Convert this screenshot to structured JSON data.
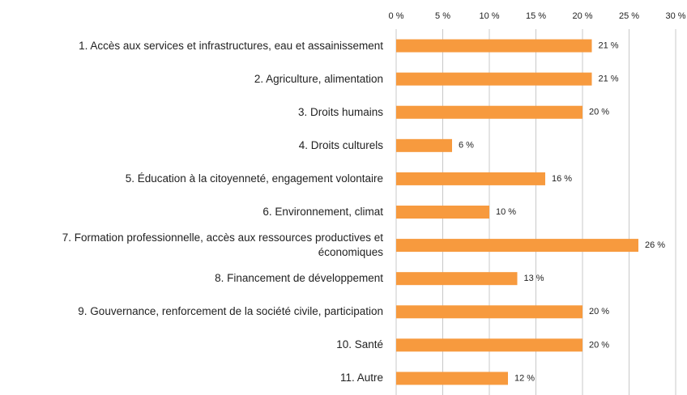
{
  "chart_data": {
    "type": "barh",
    "categories": [
      "1. Accès aux services et infrastructures, eau et assainissement",
      "2. Agriculture, alimentation",
      "3. Droits humains",
      "4. Droits culturels",
      "5. Éducation à la citoyenneté, engagement volontaire",
      "6. Environnement, climat",
      "7. Formation professionnelle, accès aux ressources productives et économiques",
      "8. Financement de développement",
      "9. Gouvernance, renforcement de la société civile, participation",
      "10. Santé",
      "11. Autre"
    ],
    "values": [
      21,
      21,
      20,
      6,
      16,
      10,
      26,
      13,
      20,
      20,
      12
    ],
    "value_labels": [
      "21 %",
      "21 %",
      "20 %",
      "6 %",
      "16 %",
      "10 %",
      "26 %",
      "13 %",
      "20 %",
      "20 %",
      "12 %"
    ],
    "color": "#f79a3e",
    "xlim": [
      0,
      30
    ],
    "xticks": [
      {
        "value": 0,
        "label": "0 %"
      },
      {
        "value": 5,
        "label": "5 %"
      },
      {
        "value": 10,
        "label": "10 %"
      },
      {
        "value": 15,
        "label": "15 %"
      },
      {
        "value": 20,
        "label": "20 %"
      },
      {
        "value": 25,
        "label": "25 %"
      },
      {
        "value": 30,
        "label": "30 %"
      }
    ],
    "grid": true
  }
}
